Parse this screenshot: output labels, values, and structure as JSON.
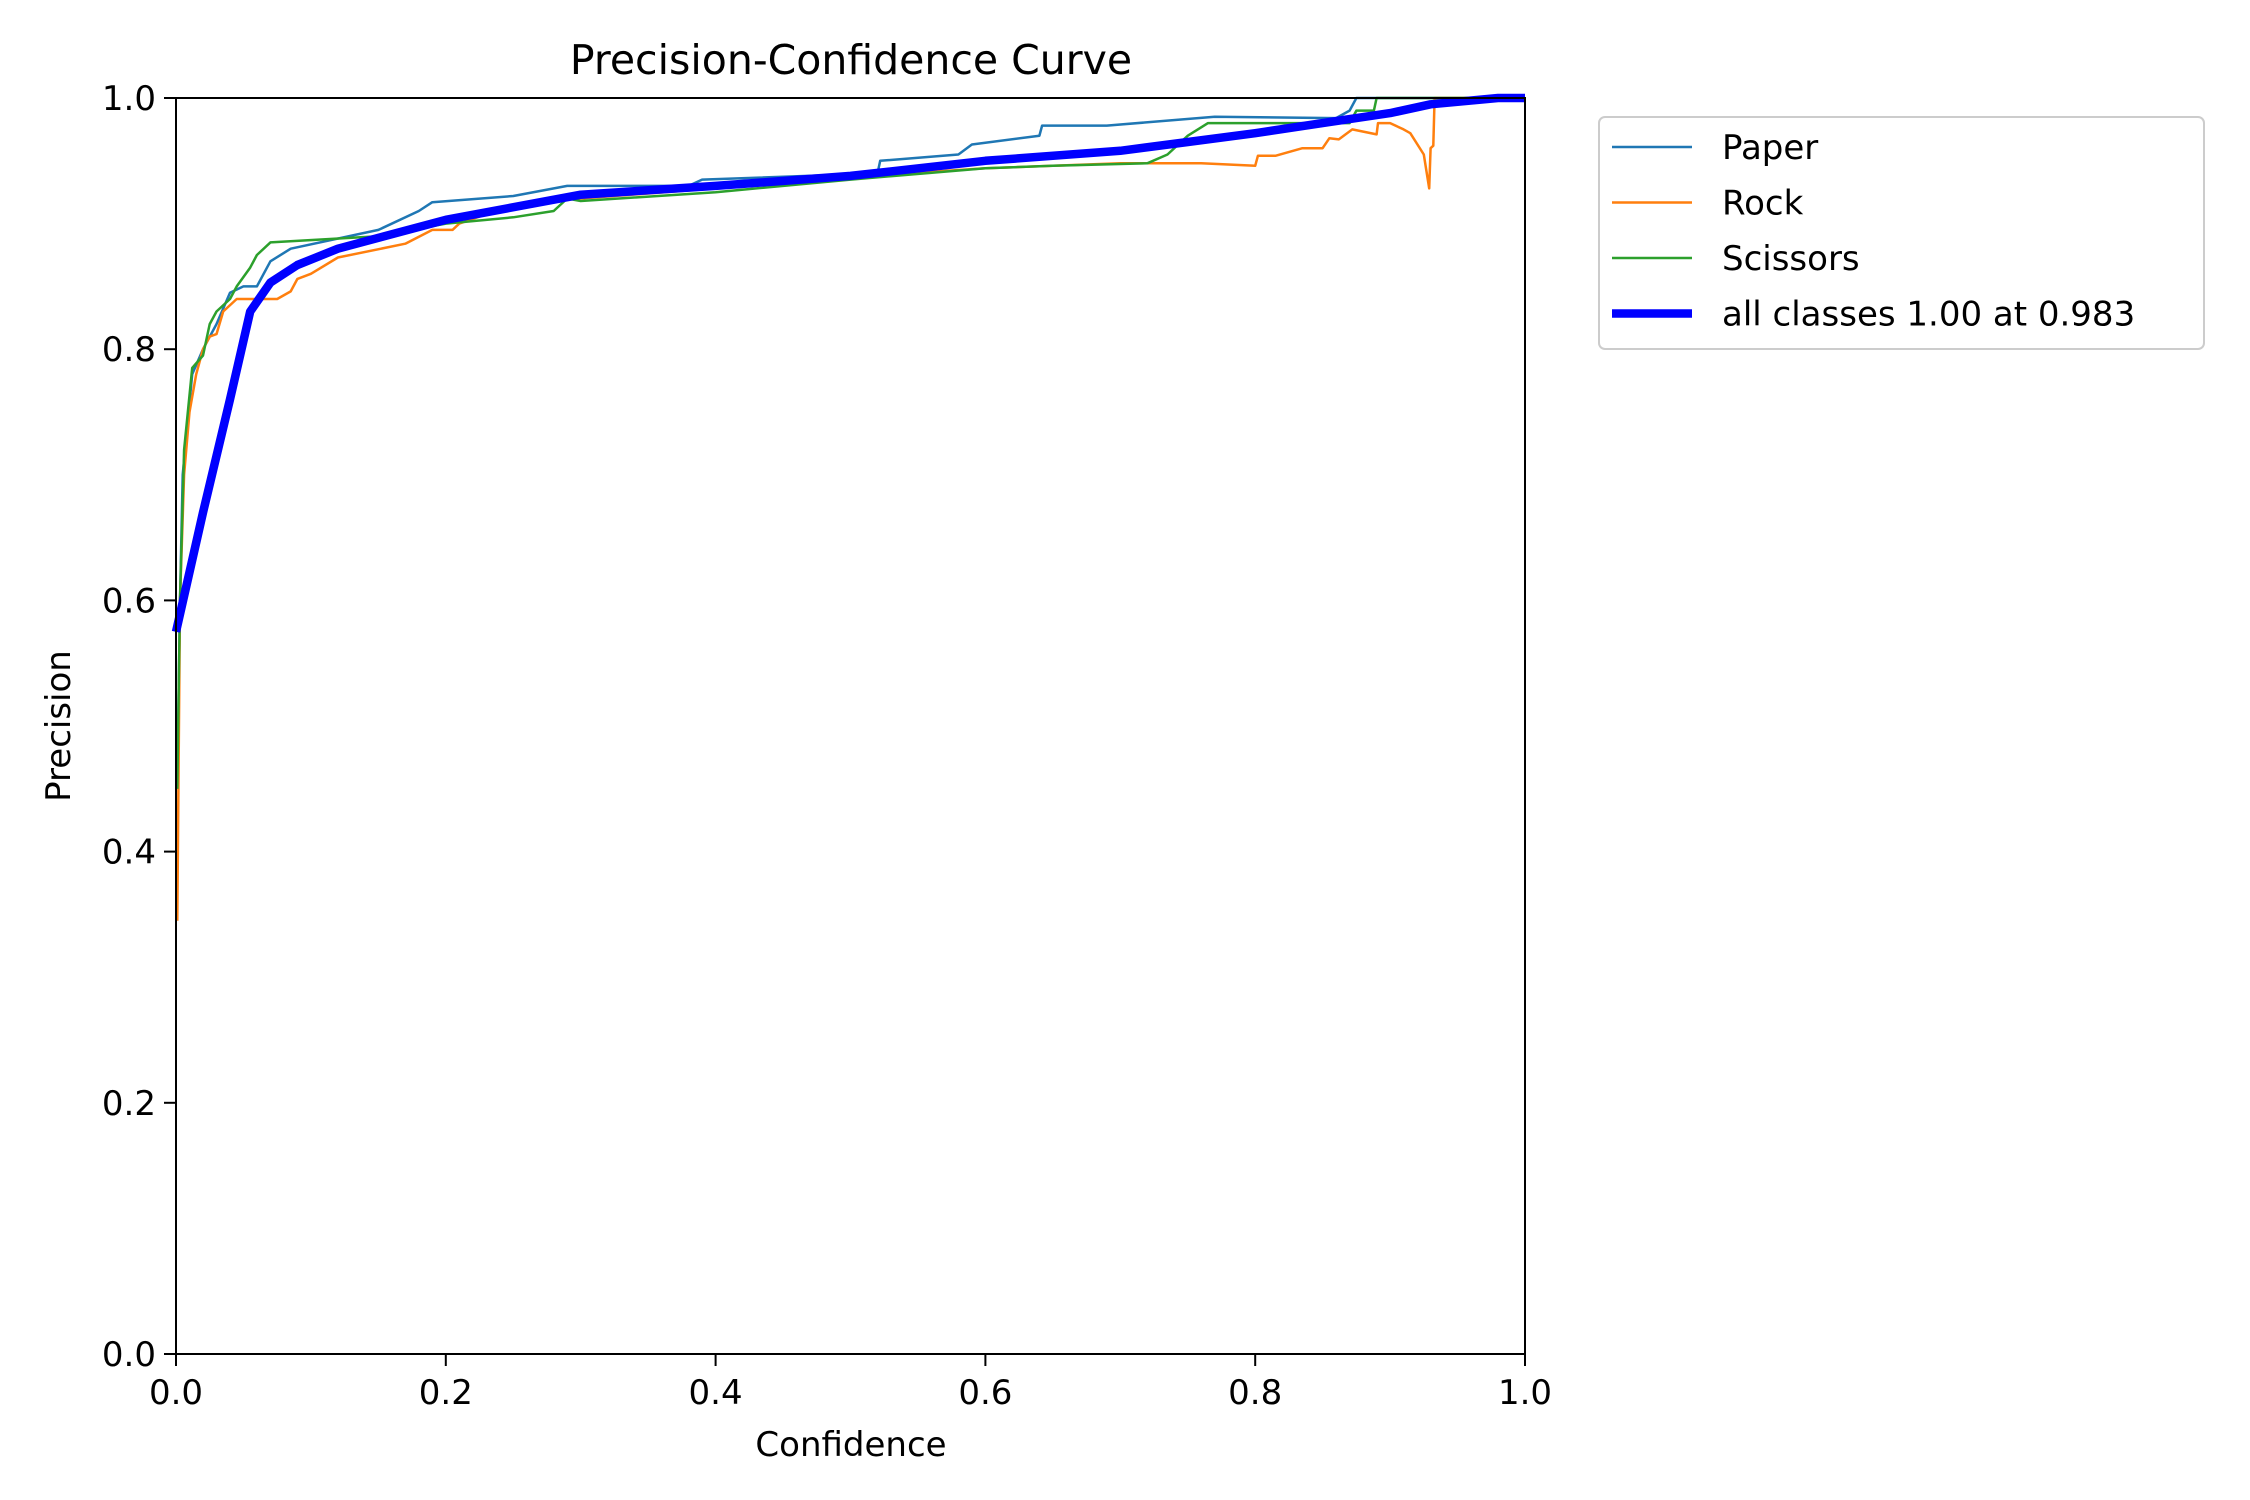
{
  "chart_data": {
    "type": "line",
    "title": "Precision-Confidence Curve",
    "xlabel": "Confidence",
    "ylabel": "Precision",
    "xlim": [
      0,
      1
    ],
    "ylim": [
      0,
      1
    ],
    "xticks": [
      "0.0",
      "0.2",
      "0.4",
      "0.6",
      "0.8",
      "1.0"
    ],
    "yticks": [
      "0.0",
      "0.2",
      "0.4",
      "0.6",
      "0.8",
      "1.0"
    ],
    "grid": false,
    "legend_position": "outside-top-right",
    "series": [
      {
        "name": "Paper",
        "color": "#1f77b4",
        "width": "thin",
        "x": [
          0.001,
          0.003,
          0.005,
          0.012,
          0.02,
          0.03,
          0.04,
          0.05,
          0.06,
          0.07,
          0.085,
          0.15,
          0.18,
          0.19,
          0.25,
          0.29,
          0.38,
          0.39,
          0.52,
          0.522,
          0.58,
          0.59,
          0.64,
          0.642,
          0.69,
          0.77,
          0.86,
          0.87,
          0.875,
          1.0
        ],
        "y": [
          0.45,
          0.6,
          0.7,
          0.78,
          0.8,
          0.82,
          0.845,
          0.85,
          0.85,
          0.87,
          0.88,
          0.895,
          0.91,
          0.917,
          0.922,
          0.93,
          0.93,
          0.935,
          0.94,
          0.95,
          0.955,
          0.963,
          0.97,
          0.978,
          0.978,
          0.985,
          0.984,
          0.99,
          1.0,
          1.0
        ]
      },
      {
        "name": "Rock",
        "color": "#ff7f0e",
        "width": "thin",
        "x": [
          0.001,
          0.003,
          0.006,
          0.01,
          0.015,
          0.02,
          0.025,
          0.03,
          0.035,
          0.045,
          0.06,
          0.075,
          0.085,
          0.09,
          0.1,
          0.12,
          0.17,
          0.19,
          0.205,
          0.21,
          0.25,
          0.3,
          0.4,
          0.5,
          0.6,
          0.7,
          0.76,
          0.8,
          0.802,
          0.815,
          0.835,
          0.85,
          0.855,
          0.862,
          0.872,
          0.89,
          0.891,
          0.9,
          0.91,
          0.915,
          0.925,
          0.929,
          0.93,
          0.932,
          0.933,
          1.0
        ],
        "y": [
          0.345,
          0.6,
          0.7,
          0.75,
          0.78,
          0.8,
          0.81,
          0.812,
          0.83,
          0.84,
          0.84,
          0.84,
          0.846,
          0.856,
          0.86,
          0.873,
          0.884,
          0.895,
          0.895,
          0.9,
          0.915,
          0.92,
          0.928,
          0.937,
          0.944,
          0.948,
          0.948,
          0.946,
          0.954,
          0.954,
          0.96,
          0.96,
          0.968,
          0.967,
          0.975,
          0.971,
          0.98,
          0.98,
          0.975,
          0.972,
          0.955,
          0.928,
          0.96,
          0.962,
          1.0,
          1.0
        ]
      },
      {
        "name": "Scissors",
        "color": "#2ca02c",
        "width": "thin",
        "x": [
          0.001,
          0.003,
          0.006,
          0.012,
          0.02,
          0.025,
          0.03,
          0.04,
          0.045,
          0.055,
          0.06,
          0.07,
          0.15,
          0.2,
          0.25,
          0.28,
          0.29,
          0.3,
          0.4,
          0.5,
          0.6,
          0.65,
          0.72,
          0.735,
          0.75,
          0.765,
          0.87,
          0.875,
          0.888,
          0.89,
          1.0
        ],
        "y": [
          0.45,
          0.6,
          0.72,
          0.785,
          0.795,
          0.82,
          0.83,
          0.84,
          0.85,
          0.865,
          0.875,
          0.885,
          0.89,
          0.9,
          0.905,
          0.91,
          0.92,
          0.918,
          0.925,
          0.935,
          0.944,
          0.946,
          0.948,
          0.955,
          0.97,
          0.98,
          0.98,
          0.99,
          0.99,
          1.0,
          1.0
        ]
      },
      {
        "name": "all classes 1.00 at 0.983",
        "color": "#0000ff",
        "width": "thick",
        "x": [
          0,
          0.02,
          0.04,
          0.055,
          0.07,
          0.09,
          0.12,
          0.2,
          0.3,
          0.4,
          0.5,
          0.6,
          0.7,
          0.75,
          0.8,
          0.85,
          0.9,
          0.93,
          0.98,
          1.0
        ],
        "y": [
          0.575,
          0.67,
          0.76,
          0.83,
          0.853,
          0.867,
          0.88,
          0.903,
          0.923,
          0.93,
          0.938,
          0.95,
          0.958,
          0.965,
          0.972,
          0.98,
          0.988,
          0.995,
          1.0,
          1.0
        ]
      }
    ]
  }
}
